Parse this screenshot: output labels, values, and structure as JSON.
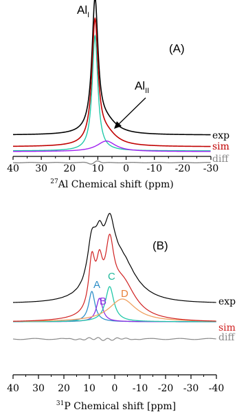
{
  "chart_data": [
    {
      "type": "line",
      "panel_label": "(A)",
      "xlabel_sup": "27",
      "xlabel_main": "Al Chemical shift (ppm)",
      "xlim": [
        40,
        -30
      ],
      "x_ticks": [
        "40",
        "30",
        "20",
        "10",
        "0",
        "-10",
        "-20",
        "-30"
      ],
      "x_tick_values": [
        40,
        30,
        20,
        10,
        0,
        -10,
        -20,
        -30
      ],
      "annotations": [
        {
          "base": "Al",
          "sub": "I",
          "points_to_ppm": 11
        },
        {
          "base": "Al",
          "sub": "II",
          "points_to_ppm": 7
        }
      ],
      "series": [
        {
          "name": "exp",
          "label_color": "#000000",
          "color": "#000000",
          "peaks": [
            {
              "center": 11,
              "width": 1.3,
              "height": 1.0
            },
            {
              "center": 7,
              "width": 4.5,
              "height": 0.09
            }
          ]
        },
        {
          "name": "sim",
          "label_color": "#c00000",
          "color": "#c00000",
          "peaks": [
            {
              "center": 11,
              "width": 1.3,
              "height": 0.93
            },
            {
              "center": 7,
              "width": 4.5,
              "height": 0.09
            }
          ]
        },
        {
          "name": "",
          "label_color": "",
          "color": "#20c8a8",
          "peaks": [
            {
              "center": 11,
              "width": 1.2,
              "height": 0.88
            }
          ]
        },
        {
          "name": "",
          "label_color": "",
          "color": "#a020f0",
          "peaks": [
            {
              "center": 7,
              "width": 4.0,
              "height": 0.09
            }
          ]
        },
        {
          "name": "diff",
          "label_color": "#888888",
          "color": "#888888",
          "diff": true
        }
      ]
    },
    {
      "type": "line",
      "panel_label": "(B)",
      "xlabel_sup": "31",
      "xlabel_main": "P Chemical shift [ppm]",
      "xlim": [
        40,
        -40
      ],
      "x_ticks": [
        "40",
        "30",
        "20",
        "10",
        "0",
        "-10",
        "-20",
        "-30",
        "-40"
      ],
      "x_tick_values": [
        40,
        30,
        20,
        10,
        0,
        -10,
        -20,
        -30,
        -40
      ],
      "component_labels": [
        {
          "text": "A",
          "color": "#2e8fc8"
        },
        {
          "text": "B",
          "color": "#8a2be2"
        },
        {
          "text": "C",
          "color": "#20b89a"
        },
        {
          "text": "D",
          "color": "#e8803a"
        }
      ],
      "components": [
        {
          "label": "A",
          "color": "#2e8fc8",
          "center": 9,
          "width": 1.5,
          "height": 0.44
        },
        {
          "label": "B",
          "color": "#8a2be2",
          "center": 6,
          "width": 1.5,
          "height": 0.34
        },
        {
          "label": "C",
          "color": "#20c8a8",
          "center": 2,
          "width": 2.0,
          "height": 0.51
        },
        {
          "label": "D",
          "color": "#f0a060",
          "center": -3,
          "width": 4.0,
          "height": 0.33
        }
      ],
      "series": [
        {
          "name": "exp",
          "label_color": "#000000",
          "color": "#000000"
        },
        {
          "name": "sim",
          "label_color": "#d02020",
          "color": "#d02020"
        },
        {
          "name": "diff",
          "label_color": "#888888",
          "color": "#888888"
        }
      ]
    }
  ]
}
